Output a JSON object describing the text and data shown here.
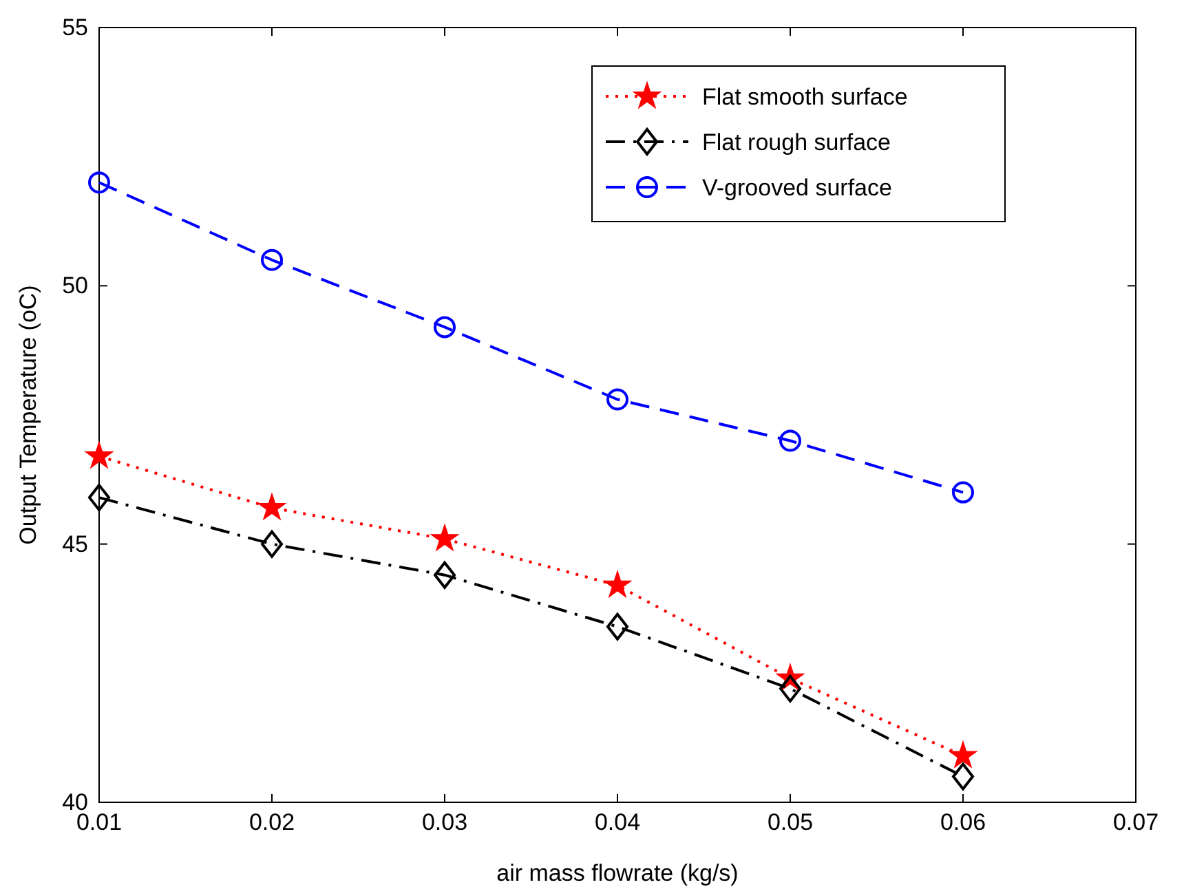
{
  "chart_data": {
    "type": "line",
    "xlabel": "air mass flowrate (kg/s)",
    "ylabel": "Output Temperature (oC)",
    "x": [
      0.01,
      0.02,
      0.03,
      0.04,
      0.05,
      0.06
    ],
    "xlim": [
      0.01,
      0.07
    ],
    "xticks": [
      0.01,
      0.02,
      0.03,
      0.04,
      0.05,
      0.06,
      0.07
    ],
    "ylim": [
      40,
      55
    ],
    "yticks": [
      40,
      45,
      50,
      55
    ],
    "grid": false,
    "legend": "top right",
    "series": [
      {
        "name": "Flat smooth surface",
        "color": "#ff0000",
        "marker": "star",
        "line_style": "dotted",
        "values": [
          46.7,
          45.7,
          45.1,
          44.2,
          42.4,
          40.9
        ]
      },
      {
        "name": "Flat rough surface",
        "color": "#000000",
        "marker": "diamond",
        "line_style": "dashdot",
        "values": [
          45.9,
          45.0,
          44.4,
          43.4,
          42.2,
          40.5
        ]
      },
      {
        "name": "V-grooved surface",
        "color": "#0000ff",
        "marker": "circle",
        "line_style": "dashed",
        "values": [
          52.0,
          50.5,
          49.2,
          47.8,
          47.0,
          46.0
        ]
      }
    ]
  }
}
